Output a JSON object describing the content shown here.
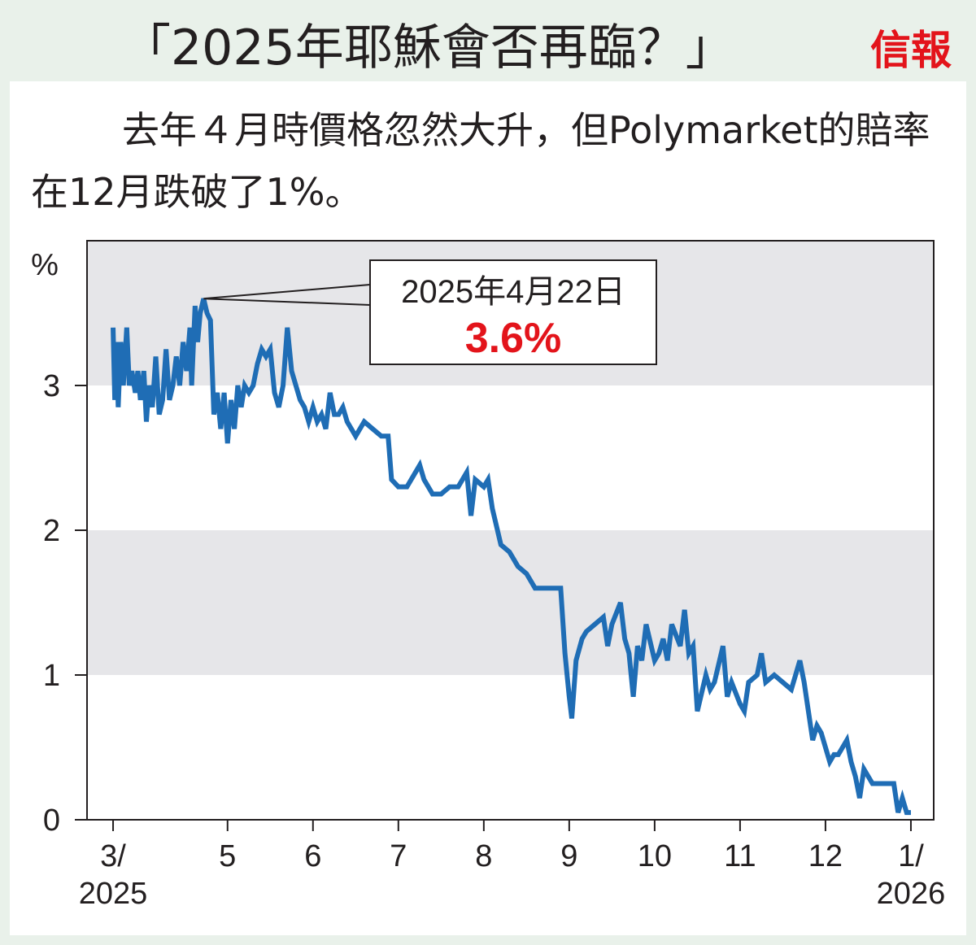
{
  "chart_data": {
    "type": "line",
    "title": "「2025年耶穌會否再臨？」",
    "logo": "信報",
    "subtitle": "去年４月時價格忽然大升，但Polymarket的賠率在12月跌破了1%。",
    "y_label": "%",
    "x": [
      3.66,
      3.68,
      3.7,
      3.72,
      3.75,
      3.78,
      3.82,
      3.85,
      3.88,
      3.92,
      3.95,
      3.98,
      4.02,
      4.05,
      4.08,
      4.12,
      4.16,
      4.2,
      4.24,
      4.28,
      4.32,
      4.36,
      4.4,
      4.44,
      4.48,
      4.52,
      4.56,
      4.58,
      4.62,
      4.65,
      4.68,
      4.72,
      4.76,
      4.8,
      4.84,
      4.88,
      4.92,
      4.96,
      5.0,
      5.04,
      5.08,
      5.12,
      5.16,
      5.2,
      5.25,
      5.3,
      5.35,
      5.4,
      5.45,
      5.5,
      5.55,
      5.6,
      5.65,
      5.7,
      5.75,
      5.8,
      5.85,
      5.9,
      5.95,
      6.0,
      6.05,
      6.1,
      6.15,
      6.2,
      6.25,
      6.3,
      6.35,
      6.4,
      6.45,
      6.5,
      6.55,
      6.6,
      6.7,
      6.8,
      6.88,
      6.92,
      7.0,
      7.1,
      7.2,
      7.25,
      7.3,
      7.4,
      7.5,
      7.6,
      7.7,
      7.8,
      7.85,
      7.9,
      8.0,
      8.05,
      8.1,
      8.2,
      8.3,
      8.4,
      8.5,
      8.6,
      8.7,
      8.8,
      8.9,
      8.95,
      9.0,
      9.03,
      9.08,
      9.15,
      9.2,
      9.3,
      9.4,
      9.45,
      9.5,
      9.6,
      9.65,
      9.7,
      9.75,
      9.8,
      9.85,
      9.9,
      10.0,
      10.05,
      10.1,
      10.15,
      10.2,
      10.3,
      10.35,
      10.4,
      10.45,
      10.5,
      10.6,
      10.65,
      10.7,
      10.8,
      10.85,
      10.9,
      11.0,
      11.05,
      11.1,
      11.2,
      11.25,
      11.3,
      11.4,
      11.5,
      11.6,
      11.7,
      11.75,
      11.8,
      11.85,
      11.9,
      11.95,
      12.0,
      12.05,
      12.1,
      12.15,
      12.2,
      12.25,
      12.3,
      12.35,
      12.4,
      12.45,
      12.5,
      12.55,
      12.7,
      12.8,
      12.85,
      12.9,
      12.95,
      13.0
    ],
    "values": [
      3.4,
      2.9,
      3.3,
      2.85,
      3.3,
      3.0,
      3.4,
      3.0,
      3.1,
      2.95,
      3.1,
      2.9,
      3.1,
      2.75,
      3.0,
      2.85,
      3.2,
      2.8,
      2.9,
      3.25,
      2.9,
      3.0,
      3.2,
      3.0,
      3.3,
      3.1,
      3.4,
      3.0,
      3.55,
      3.3,
      3.5,
      3.6,
      3.5,
      3.45,
      2.8,
      2.95,
      2.7,
      2.95,
      2.6,
      2.9,
      2.7,
      3.0,
      2.85,
      3.0,
      2.95,
      3.0,
      3.15,
      3.25,
      3.2,
      3.25,
      2.95,
      2.85,
      3.0,
      3.4,
      3.1,
      3.0,
      2.9,
      2.85,
      2.75,
      2.85,
      2.75,
      2.8,
      2.7,
      2.95,
      2.8,
      2.8,
      2.85,
      2.75,
      2.7,
      2.65,
      2.7,
      2.75,
      2.7,
      2.65,
      2.65,
      2.35,
      2.3,
      2.3,
      2.4,
      2.45,
      2.35,
      2.25,
      2.25,
      2.3,
      2.3,
      2.4,
      2.1,
      2.35,
      2.3,
      2.35,
      2.15,
      1.9,
      1.85,
      1.75,
      1.7,
      1.6,
      1.6,
      1.6,
      1.6,
      1.15,
      0.85,
      0.7,
      1.1,
      1.25,
      1.3,
      1.35,
      1.4,
      1.2,
      1.35,
      1.5,
      1.25,
      1.15,
      0.85,
      1.2,
      1.1,
      1.35,
      1.1,
      1.15,
      1.25,
      1.1,
      1.35,
      1.2,
      1.45,
      1.15,
      1.2,
      0.75,
      1.0,
      0.9,
      0.95,
      1.2,
      0.85,
      0.95,
      0.8,
      0.75,
      0.95,
      1.0,
      1.15,
      0.95,
      1.0,
      0.95,
      0.9,
      1.1,
      0.95,
      0.75,
      0.55,
      0.65,
      0.6,
      0.5,
      0.4,
      0.45,
      0.45,
      0.5,
      0.55,
      0.4,
      0.3,
      0.15,
      0.35,
      0.3,
      0.25,
      0.25,
      0.25,
      0.05,
      0.15,
      0.05,
      0.05
    ],
    "color": "#1f6db5",
    "xlim": [
      3.355,
      13.267
    ],
    "xticks": [
      {
        "value": 3.66,
        "label": "3/\n2025"
      },
      5,
      6,
      7,
      8,
      9,
      10,
      11,
      12,
      {
        "value": 13,
        "label": "1/\n2026"
      }
    ],
    "ylim": [
      0,
      4
    ],
    "yticks": [
      0,
      1,
      2,
      3
    ],
    "band_color": "#e6e6e9",
    "annotation": {
      "label": "2025年4月22日",
      "x": 4.72,
      "value": 3.6,
      "value_label": "3.6%"
    }
  }
}
